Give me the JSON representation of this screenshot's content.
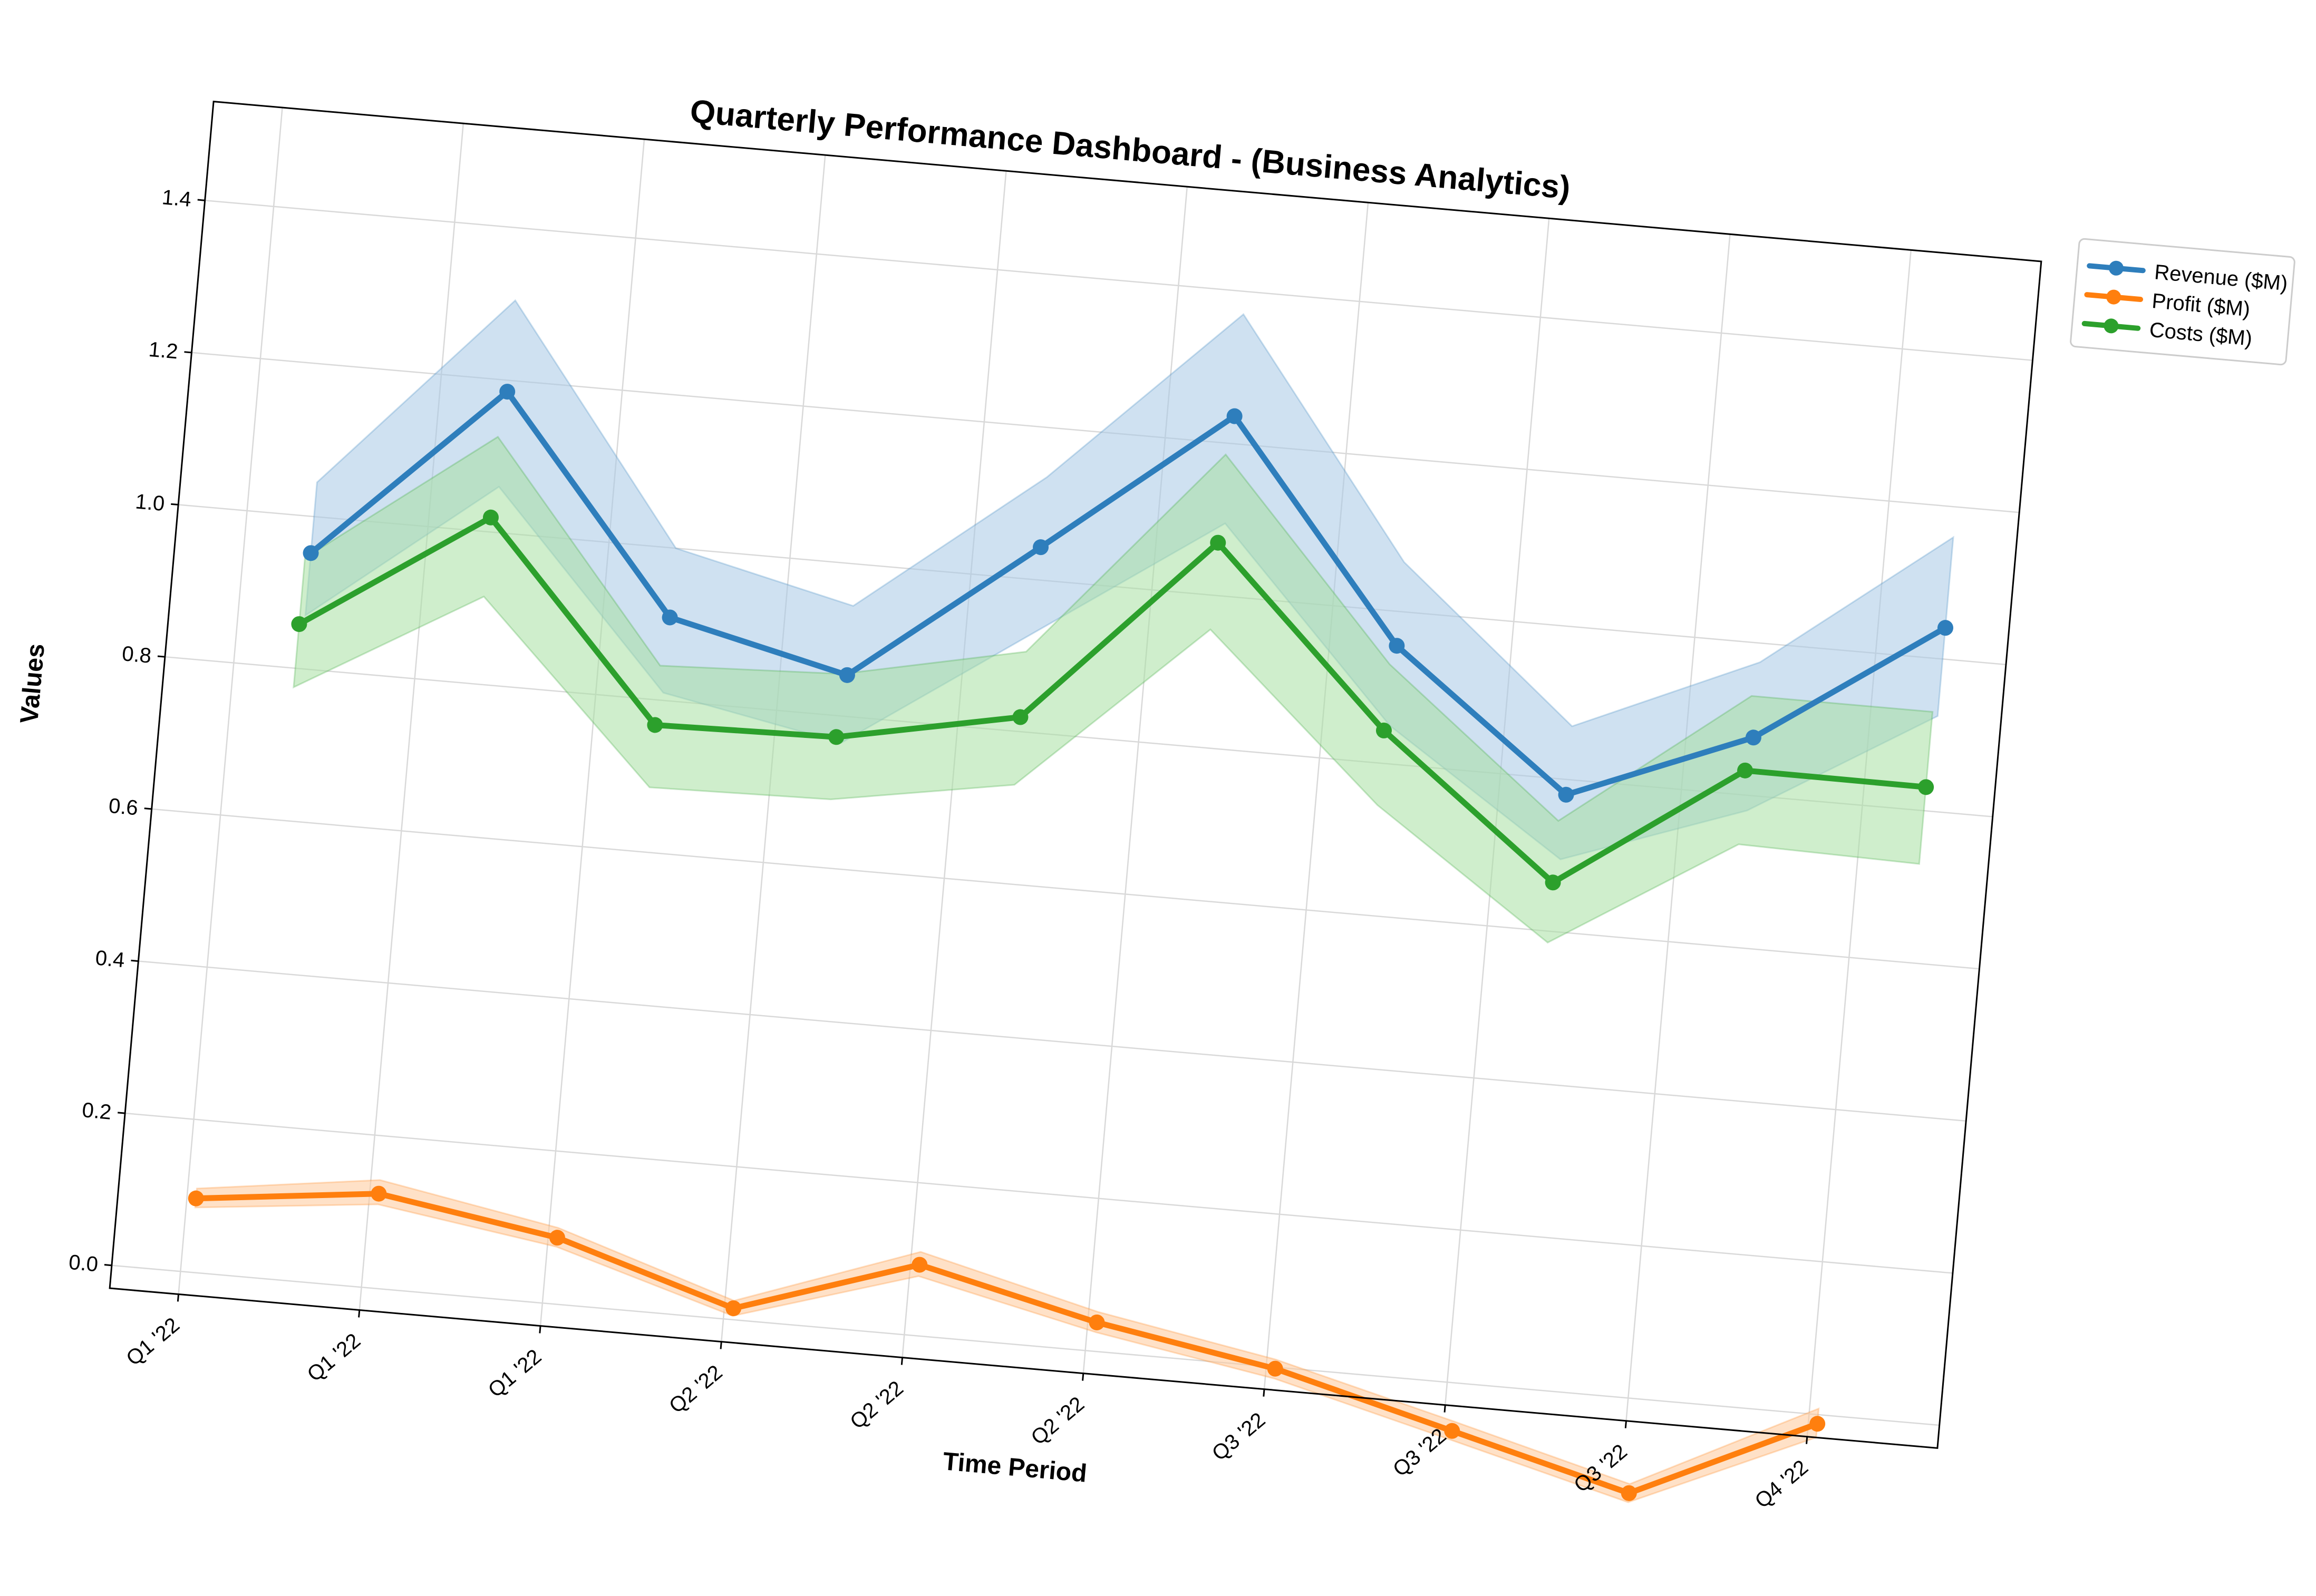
{
  "chart_data": {
    "type": "line",
    "title": "Quarterly Performance Dashboard - (Business Analytics)",
    "xlabel": "Time Period",
    "ylabel": "Values",
    "categories": [
      "Q1 '22",
      "Q1 '22",
      "Q1 '22",
      "Q2 '22",
      "Q2 '22",
      "Q2 '22",
      "Q3 '22",
      "Q3 '22",
      "Q3 '22",
      "Q4 '22"
    ],
    "yticks": [
      "0.0",
      "0.2",
      "0.4",
      "0.6",
      "0.8",
      "1.0",
      "1.2",
      "1.4"
    ],
    "ytick_values": [
      0.0,
      0.2,
      0.4,
      0.6,
      0.8,
      1.0,
      1.2,
      1.4
    ],
    "ylim": [
      -0.03,
      1.53
    ],
    "xlim": [
      -0.38,
      9.72
    ],
    "rotation_degrees": 5,
    "grid": true,
    "legend_position": "upper-right-outside",
    "series": [
      {
        "name": "Revenue ($M)",
        "color": "#2e7ebc",
        "band_color": "#a8c8e6",
        "x": [
          0.37,
          1.37,
          2.37,
          3.37,
          4.37,
          5.37,
          6.37,
          7.37,
          8.37,
          9.37
        ],
        "values": [
          0.952,
          1.185,
          0.909,
          0.854,
          1.043,
          1.236,
          0.955,
          0.78,
          0.876,
          1.041
        ],
        "upper": [
          1.045,
          1.305,
          1.0,
          0.945,
          1.135,
          1.37,
          1.065,
          0.87,
          0.975,
          1.16
        ],
        "lower": [
          0.87,
          1.06,
          0.81,
          0.765,
          0.93,
          1.095,
          0.85,
          0.695,
          0.78,
          0.925
        ]
      },
      {
        "name": "Profit ($M)",
        "color": "#ff7f0e",
        "band_color": "#ffc899",
        "x": [
          0.05,
          1.05,
          2.05,
          3.05,
          4.05,
          5.05,
          6.05,
          7.05,
          8.05,
          9.05
        ],
        "values": [
          0.097,
          0.124,
          0.087,
          0.015,
          0.093,
          0.038,
          -0.002,
          -0.063,
          -0.124,
          -0.012
        ],
        "upper": [
          0.11,
          0.142,
          0.1,
          0.025,
          0.11,
          0.052,
          0.01,
          -0.05,
          -0.112,
          0.008
        ],
        "lower": [
          0.085,
          0.11,
          0.075,
          0.005,
          0.078,
          0.025,
          -0.015,
          -0.075,
          -0.136,
          -0.03
        ]
      },
      {
        "name": "Costs ($M)",
        "color": "#2ca02c",
        "band_color": "#a8e0a3",
        "x": [
          0.34,
          1.34,
          2.34,
          3.34,
          4.34,
          5.34,
          6.34,
          7.34,
          8.34,
          9.34
        ],
        "values": [
          0.858,
          1.019,
          0.767,
          0.772,
          0.819,
          1.069,
          0.843,
          0.664,
          0.832,
          0.831
        ],
        "upper": [
          0.945,
          1.125,
          0.845,
          0.855,
          0.905,
          1.185,
          0.93,
          0.745,
          0.93,
          0.93
        ],
        "lower": [
          0.775,
          0.915,
          0.685,
          0.69,
          0.73,
          0.955,
          0.745,
          0.585,
          0.735,
          0.73
        ]
      }
    ]
  }
}
